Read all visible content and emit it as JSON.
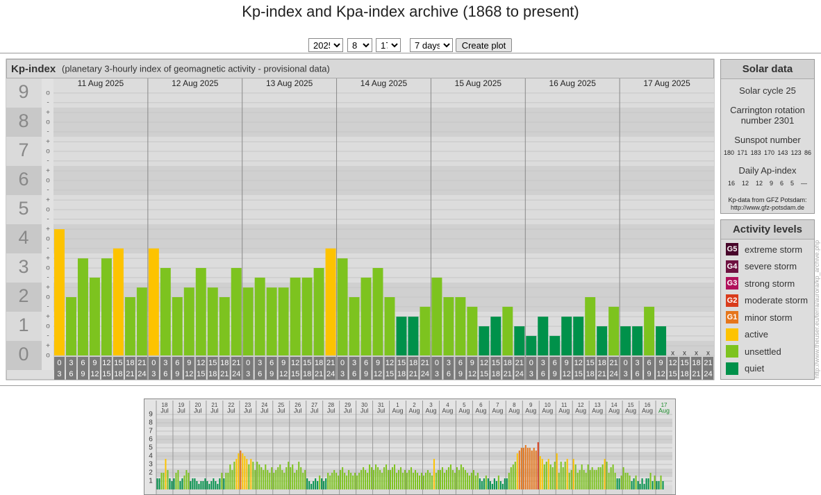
{
  "header": {
    "title": "Kp-index and Kpa-index archive (1868 to present)"
  },
  "controls": {
    "year": "2025",
    "month": "8",
    "day": "17",
    "span": "7 days",
    "button": "Create plot"
  },
  "chart_data": [
    {
      "type": "kp-bar",
      "title": "Kp-index",
      "subtitle": "(planetary 3-hourly index of geomagnetic activity - provisional data)",
      "days": [
        "11 Aug 2025",
        "12 Aug 2025",
        "13 Aug 2025",
        "14 Aug 2025",
        "15 Aug 2025",
        "16 Aug 2025",
        "17 Aug 2025"
      ],
      "intervals": [
        [
          "0",
          "3"
        ],
        [
          "3",
          "6"
        ],
        [
          "6",
          "9"
        ],
        [
          "9",
          "12"
        ],
        [
          "12",
          "15"
        ],
        [
          "15",
          "18"
        ],
        [
          "18",
          "21"
        ],
        [
          "21",
          "24"
        ]
      ],
      "values": [
        4.33,
        2,
        3.33,
        2.67,
        3.33,
        3.67,
        2,
        2.33,
        3.67,
        3,
        2,
        2.33,
        3,
        2.33,
        2,
        3,
        2.33,
        2.67,
        2.33,
        2.33,
        2.67,
        2.67,
        3,
        3.67,
        3.33,
        2,
        2.67,
        3,
        2,
        1.33,
        1.33,
        1.67,
        2.67,
        2,
        2,
        1.67,
        1,
        1.33,
        1.67,
        1,
        0.67,
        1.33,
        0.67,
        1.33,
        1.33,
        2,
        1,
        1.67,
        1,
        1,
        1.67,
        1,
        null,
        null,
        null,
        null
      ],
      "colors": [
        "#fdc300",
        "#7dc31f",
        "#7dc31f",
        "#7dc31f",
        "#7dc31f",
        "#fdc300",
        "#7dc31f",
        "#7dc31f",
        "#fdc300",
        "#7dc31f",
        "#7dc31f",
        "#7dc31f",
        "#7dc31f",
        "#7dc31f",
        "#7dc31f",
        "#7dc31f",
        "#7dc31f",
        "#7dc31f",
        "#7dc31f",
        "#7dc31f",
        "#7dc31f",
        "#7dc31f",
        "#7dc31f",
        "#fdc300",
        "#7dc31f",
        "#7dc31f",
        "#7dc31f",
        "#7dc31f",
        "#7dc31f",
        "#00914a",
        "#00914a",
        "#7dc31f",
        "#7dc31f",
        "#7dc31f",
        "#7dc31f",
        "#7dc31f",
        "#00914a",
        "#00914a",
        "#7dc31f",
        "#00914a",
        "#00914a",
        "#00914a",
        "#00914a",
        "#00914a",
        "#00914a",
        "#7dc31f",
        "#00914a",
        "#7dc31f",
        "#00914a",
        "#00914a",
        "#7dc31f",
        "#00914a",
        null,
        null,
        null,
        null
      ],
      "missing_label": "x",
      "ylim": [
        -0.5,
        9.5
      ],
      "yticks": [
        0,
        1,
        2,
        3,
        4,
        5,
        6,
        7,
        8,
        9
      ],
      "yminorticks": [
        {
          "value": 0,
          "label": "o"
        },
        {
          "value": 0.33,
          "label": "+"
        },
        {
          "value": 0.67,
          "label": "-"
        },
        {
          "value": 1,
          "label": "o"
        },
        {
          "value": 1.33,
          "label": "+"
        },
        {
          "value": 1.67,
          "label": "-"
        },
        {
          "value": 2,
          "label": "o"
        },
        {
          "value": 2.33,
          "label": "+"
        },
        {
          "value": 2.67,
          "label": "-"
        },
        {
          "value": 3,
          "label": "o"
        },
        {
          "value": 3.33,
          "label": "+"
        },
        {
          "value": 3.67,
          "label": "-"
        },
        {
          "value": 4,
          "label": "o"
        },
        {
          "value": 4.33,
          "label": "+"
        },
        {
          "value": 4.67,
          "label": "-"
        },
        {
          "value": 5,
          "label": "o"
        },
        {
          "value": 5.33,
          "label": "+"
        },
        {
          "value": 5.67,
          "label": "-"
        },
        {
          "value": 6,
          "label": "o"
        },
        {
          "value": 6.33,
          "label": "+"
        },
        {
          "value": 6.67,
          "label": "-"
        },
        {
          "value": 7,
          "label": "o"
        },
        {
          "value": 7.33,
          "label": "+"
        },
        {
          "value": 7.67,
          "label": "-"
        },
        {
          "value": 8,
          "label": "o"
        },
        {
          "value": 8.33,
          "label": "+"
        },
        {
          "value": 8.67,
          "label": "-"
        },
        {
          "value": 9,
          "label": "o"
        }
      ]
    },
    {
      "type": "mini-bar",
      "days": [
        [
          "18",
          "Jul"
        ],
        [
          "19",
          "Jul"
        ],
        [
          "20",
          "Jul"
        ],
        [
          "21",
          "Jul"
        ],
        [
          "22",
          "Jul"
        ],
        [
          "23",
          "Jul"
        ],
        [
          "24",
          "Jul"
        ],
        [
          "25",
          "Jul"
        ],
        [
          "26",
          "Jul"
        ],
        [
          "27",
          "Jul"
        ],
        [
          "28",
          "Jul"
        ],
        [
          "29",
          "Jul"
        ],
        [
          "30",
          "Jul"
        ],
        [
          "31",
          "Jul"
        ],
        [
          "1",
          "Aug"
        ],
        [
          "2",
          "Aug"
        ],
        [
          "3",
          "Aug"
        ],
        [
          "4",
          "Aug"
        ],
        [
          "5",
          "Aug"
        ],
        [
          "6",
          "Aug"
        ],
        [
          "7",
          "Aug"
        ],
        [
          "8",
          "Aug"
        ],
        [
          "9",
          "Aug"
        ],
        [
          "10",
          "Aug"
        ],
        [
          "11",
          "Aug"
        ],
        [
          "12",
          "Aug"
        ],
        [
          "13",
          "Aug"
        ],
        [
          "14",
          "Aug"
        ],
        [
          "15",
          "Aug"
        ],
        [
          "16",
          "Aug"
        ],
        [
          "17",
          "Aug"
        ]
      ],
      "slots_per_day": 8,
      "values": [
        1.33,
        1.33,
        2,
        2,
        3.67,
        2.33,
        1.33,
        1,
        1.33,
        2,
        2.33,
        1,
        1.33,
        1.67,
        2.33,
        2,
        1,
        1.33,
        1.33,
        1,
        0.67,
        1,
        1,
        1.33,
        1,
        0.67,
        1,
        1.33,
        1,
        0.67,
        1.33,
        2,
        1.33,
        2,
        2,
        3,
        2.33,
        3.33,
        3.67,
        4.33,
        4.67,
        4.33,
        4,
        3.67,
        3,
        3.67,
        3.33,
        2.33,
        3.33,
        3,
        2.67,
        2.33,
        3,
        2.33,
        2,
        2.67,
        2,
        2.33,
        2.67,
        3,
        2.33,
        2,
        2.67,
        3.33,
        2.67,
        3,
        2,
        2.33,
        3.33,
        2.67,
        2,
        2.33,
        1.33,
        1,
        0.67,
        1,
        1.33,
        1,
        1.67,
        1.33,
        1,
        1.33,
        2,
        1.67,
        2,
        2.33,
        2,
        1.67,
        2.33,
        2.67,
        2,
        1.67,
        2.33,
        2,
        1.67,
        2,
        1.67,
        2,
        2.33,
        2.67,
        2.33,
        2,
        3,
        2.67,
        2.33,
        3,
        2.67,
        2.33,
        2,
        2.67,
        3,
        2.33,
        2.33,
        2.67,
        3,
        2,
        2.33,
        2.67,
        2,
        2.33,
        2,
        2.33,
        2.67,
        2,
        2.33,
        2,
        1.67,
        2,
        1.67,
        2,
        2.33,
        2,
        1.67,
        3.67,
        2,
        2.33,
        2.33,
        2.67,
        2,
        2.33,
        2.67,
        3,
        2.33,
        2,
        2.67,
        2.33,
        3,
        2.67,
        2.33,
        2,
        1.67,
        2,
        2.33,
        1.67,
        2,
        1.33,
        1,
        1.33,
        1.67,
        1.33,
        1,
        0.67,
        1.33,
        1,
        1.67,
        1,
        0.67,
        1.33,
        1.33,
        2,
        2.67,
        3,
        3.33,
        4.33,
        4.67,
        5,
        5,
        5.33,
        5,
        5,
        4.67,
        5,
        4.67,
        5.67,
        4,
        3.67,
        3,
        3.33,
        3.67,
        3,
        2.67,
        3.33,
        4.33,
        2,
        3.33,
        2.67,
        3.33,
        3.67,
        2,
        2.33,
        3.67,
        3,
        2,
        2.33,
        3,
        2.33,
        2,
        3,
        2.33,
        2.67,
        2.33,
        2.33,
        2.67,
        2.67,
        3,
        3.67,
        3.33,
        2,
        2.67,
        3,
        2,
        1.33,
        1.33,
        1.67,
        2.67,
        2,
        2,
        1.67,
        1,
        1.33,
        1.67,
        1,
        0.67,
        1.33,
        0.67,
        1.33,
        1.33,
        2,
        1,
        1.67,
        1,
        1,
        1.67,
        1,
        null,
        null,
        null,
        null
      ],
      "colors": [
        "#00914a",
        "#00914a",
        "#7dc31f",
        "#7dc31f",
        "#fdc300",
        "#7dc31f",
        "#00914a",
        "#00914a",
        "#00914a",
        "#7dc31f",
        "#7dc31f",
        "#00914a",
        "#00914a",
        "#7dc31f",
        "#7dc31f",
        "#7dc31f",
        "#00914a",
        "#00914a",
        "#00914a",
        "#00914a",
        "#00914a",
        "#00914a",
        "#00914a",
        "#00914a",
        "#00914a",
        "#00914a",
        "#00914a",
        "#00914a",
        "#00914a",
        "#00914a",
        "#00914a",
        "#7dc31f",
        "#00914a",
        "#7dc31f",
        "#7dc31f",
        "#7dc31f",
        "#7dc31f",
        "#7dc31f",
        "#fdc300",
        "#fdc300",
        "#e6761b",
        "#fdc300",
        "#fdc300",
        "#fdc300",
        "#7dc31f",
        "#fdc300",
        "#7dc31f",
        "#7dc31f",
        "#7dc31f",
        "#7dc31f",
        "#7dc31f",
        "#7dc31f",
        "#7dc31f",
        "#7dc31f",
        "#7dc31f",
        "#7dc31f",
        "#7dc31f",
        "#7dc31f",
        "#7dc31f",
        "#7dc31f",
        "#7dc31f",
        "#7dc31f",
        "#7dc31f",
        "#7dc31f",
        "#7dc31f",
        "#7dc31f",
        "#7dc31f",
        "#7dc31f",
        "#7dc31f",
        "#7dc31f",
        "#7dc31f",
        "#7dc31f",
        "#00914a",
        "#00914a",
        "#00914a",
        "#00914a",
        "#00914a",
        "#00914a",
        "#7dc31f",
        "#00914a",
        "#00914a",
        "#00914a",
        "#7dc31f",
        "#7dc31f",
        "#7dc31f",
        "#7dc31f",
        "#7dc31f",
        "#7dc31f",
        "#7dc31f",
        "#7dc31f",
        "#7dc31f",
        "#7dc31f",
        "#7dc31f",
        "#7dc31f",
        "#7dc31f",
        "#7dc31f",
        "#7dc31f",
        "#7dc31f",
        "#7dc31f",
        "#7dc31f",
        "#7dc31f",
        "#7dc31f",
        "#7dc31f",
        "#7dc31f",
        "#7dc31f",
        "#7dc31f",
        "#7dc31f",
        "#7dc31f",
        "#7dc31f",
        "#7dc31f",
        "#7dc31f",
        "#7dc31f",
        "#7dc31f",
        "#7dc31f",
        "#7dc31f",
        "#7dc31f",
        "#7dc31f",
        "#7dc31f",
        "#7dc31f",
        "#7dc31f",
        "#7dc31f",
        "#7dc31f",
        "#7dc31f",
        "#7dc31f",
        "#7dc31f",
        "#7dc31f",
        "#7dc31f",
        "#7dc31f",
        "#7dc31f",
        "#7dc31f",
        "#7dc31f",
        "#7dc31f",
        "#7dc31f",
        "#fdc300",
        "#7dc31f",
        "#7dc31f",
        "#7dc31f",
        "#7dc31f",
        "#7dc31f",
        "#7dc31f",
        "#7dc31f",
        "#7dc31f",
        "#7dc31f",
        "#7dc31f",
        "#7dc31f",
        "#7dc31f",
        "#7dc31f",
        "#7dc31f",
        "#7dc31f",
        "#7dc31f",
        "#7dc31f",
        "#7dc31f",
        "#7dc31f",
        "#7dc31f",
        "#7dc31f",
        "#00914a",
        "#00914a",
        "#00914a",
        "#7dc31f",
        "#00914a",
        "#00914a",
        "#00914a",
        "#00914a",
        "#00914a",
        "#7dc31f",
        "#00914a",
        "#00914a",
        "#00914a",
        "#00914a",
        "#7dc31f",
        "#7dc31f",
        "#7dc31f",
        "#7dc31f",
        "#fdc300",
        "#e6761b",
        "#e6761b",
        "#e6761b",
        "#e6761b",
        "#e6761b",
        "#e6761b",
        "#e6761b",
        "#e6761b",
        "#e6761b",
        "#d93b1b",
        "#fdc300",
        "#fdc300",
        "#7dc31f",
        "#7dc31f",
        "#fdc300",
        "#7dc31f",
        "#7dc31f",
        "#7dc31f",
        "#fdc300",
        "#7dc31f",
        "#7dc31f",
        "#7dc31f",
        "#7dc31f",
        "#fdc300",
        "#7dc31f",
        "#7dc31f",
        "#fdc300",
        "#7dc31f",
        "#7dc31f",
        "#7dc31f",
        "#7dc31f",
        "#7dc31f",
        "#7dc31f",
        "#7dc31f",
        "#7dc31f",
        "#7dc31f",
        "#7dc31f",
        "#7dc31f",
        "#7dc31f",
        "#7dc31f",
        "#7dc31f",
        "#fdc300",
        "#7dc31f",
        "#7dc31f",
        "#7dc31f",
        "#7dc31f",
        "#7dc31f",
        "#00914a",
        "#00914a",
        "#7dc31f",
        "#7dc31f",
        "#7dc31f",
        "#7dc31f",
        "#7dc31f",
        "#00914a",
        "#00914a",
        "#7dc31f",
        "#00914a",
        "#00914a",
        "#00914a",
        "#00914a",
        "#00914a",
        "#00914a",
        "#7dc31f",
        "#00914a",
        "#7dc31f",
        "#00914a",
        "#00914a",
        "#7dc31f",
        "#00914a",
        null,
        null,
        null,
        null
      ],
      "ylim": [
        0,
        9.5
      ],
      "yticks": [
        1,
        2,
        3,
        4,
        5,
        6,
        7,
        8,
        9
      ],
      "last_day_color": "#1a8a2a"
    }
  ],
  "solar_data": {
    "title": "Solar data",
    "cycle": "Solar cycle 25",
    "carrington": "Carrington rotation number 2301",
    "sunspot_title": "Sunspot number",
    "sunspot": [
      180,
      171,
      183,
      170,
      143,
      123,
      86
    ],
    "ap_title": "Daily Ap-index",
    "ap": [
      16,
      12,
      12,
      9,
      6,
      5,
      "—"
    ],
    "source": "Kp-data from GFZ Potsdam:",
    "source_url": "http://www.gfz-potsdam.de"
  },
  "activity_levels": {
    "title": "Activity levels",
    "levels": [
      {
        "badge": "G5",
        "label": "extreme storm",
        "color": "#47062a"
      },
      {
        "badge": "G4",
        "label": "severe storm",
        "color": "#6e1140"
      },
      {
        "badge": "G3",
        "label": "strong storm",
        "color": "#b0105a"
      },
      {
        "badge": "G2",
        "label": "moderate storm",
        "color": "#d93b1b"
      },
      {
        "badge": "G1",
        "label": "minor storm",
        "color": "#e6761b"
      },
      {
        "label": "active",
        "color": "#fdc300"
      },
      {
        "label": "unsettled",
        "color": "#7dc31f"
      },
      {
        "label": "quiet",
        "color": "#00914a"
      }
    ]
  },
  "side_url": "http://www.theuser.eu/terra/aurora/kp_archive.php"
}
